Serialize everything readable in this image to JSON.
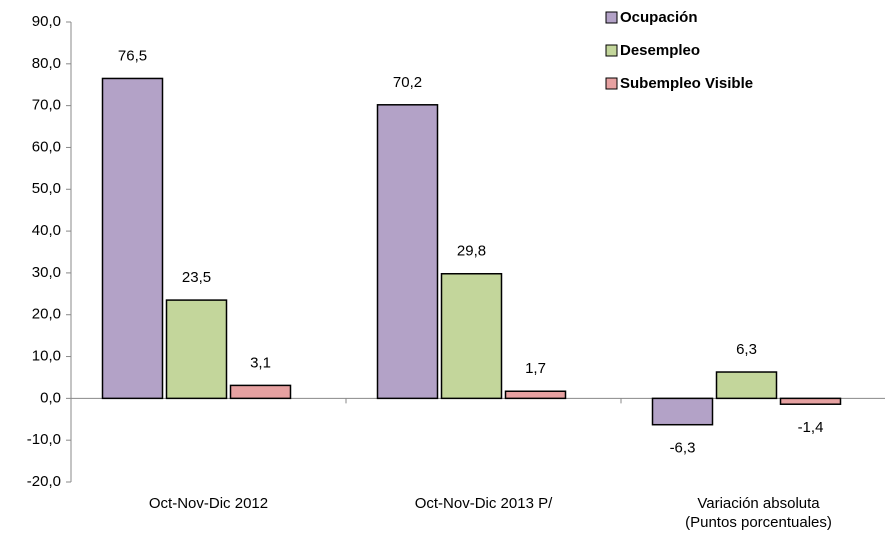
{
  "chart_data": {
    "type": "bar",
    "categories": [
      "Oct-Nov-Dic 2012",
      "Oct-Nov-Dic 2013 P/",
      "Variación absoluta\n(Puntos porcentuales)"
    ],
    "series": [
      {
        "name": "Ocupación",
        "color": "#b3a2c7",
        "values": [
          76.5,
          70.2,
          -6.3
        ],
        "value_labels": [
          "76,5",
          "70,2",
          "-6,3"
        ]
      },
      {
        "name": "Desempleo",
        "color": "#c3d69b",
        "values": [
          23.5,
          29.8,
          6.3
        ],
        "value_labels": [
          "23,5",
          "29,8",
          "6,3"
        ]
      },
      {
        "name": "Subempleo Visible",
        "color": "#e6a1a1",
        "values": [
          3.1,
          1.7,
          -1.4
        ],
        "value_labels": [
          "3,1",
          "1,7",
          "-1,4"
        ]
      }
    ],
    "ylim": [
      -20,
      90
    ],
    "yticks": [
      {
        "value": -20,
        "label": "-20,0"
      },
      {
        "value": -10,
        "label": "-10,0"
      },
      {
        "value": 0,
        "label": "0,0"
      },
      {
        "value": 10,
        "label": "10,0"
      },
      {
        "value": 20,
        "label": "20,0"
      },
      {
        "value": 30,
        "label": "30,0"
      },
      {
        "value": 40,
        "label": "40,0"
      },
      {
        "value": 50,
        "label": "50,0"
      },
      {
        "value": 60,
        "label": "60,0"
      },
      {
        "value": 70,
        "label": "70,0"
      },
      {
        "value": 80,
        "label": "80,0"
      },
      {
        "value": 90,
        "label": "90,0"
      }
    ],
    "legend": "top-right"
  }
}
